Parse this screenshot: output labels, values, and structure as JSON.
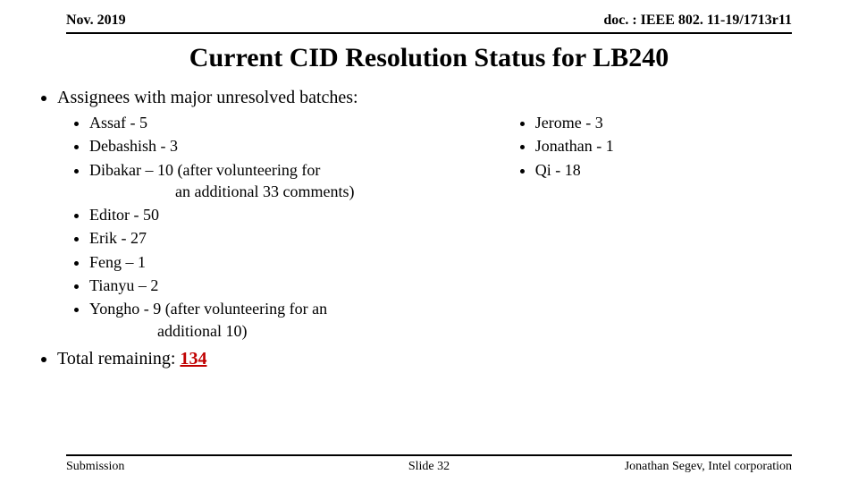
{
  "header": {
    "left": "Nov. 2019",
    "right": "doc. : IEEE 802. 11-19/1713r11"
  },
  "title": "Current CID Resolution Status for LB240",
  "main_bullets": {
    "assignees_label": "Assignees with major unresolved batches:",
    "total_label": "Total remaining: ",
    "total_value": "134"
  },
  "left_col": [
    "Assaf - 5",
    "Debashish - 3",
    "Dibakar –  10 (after volunteering for",
    "an additional 33 comments)",
    "Editor - 50",
    "Erik - 27",
    "Feng – 1",
    "Tianyu – 2",
    "Yongho - 9 (after volunteering for an",
    "additional 10)"
  ],
  "right_col": [
    "Jerome - 3",
    "Jonathan - 1",
    "Qi - 18"
  ],
  "footer": {
    "left": "Submission",
    "center": "Slide 32",
    "right": "Jonathan Segev, Intel corporation"
  },
  "colors": {
    "accent_red": "#c00000",
    "text": "#000000",
    "bg": "#ffffff"
  }
}
